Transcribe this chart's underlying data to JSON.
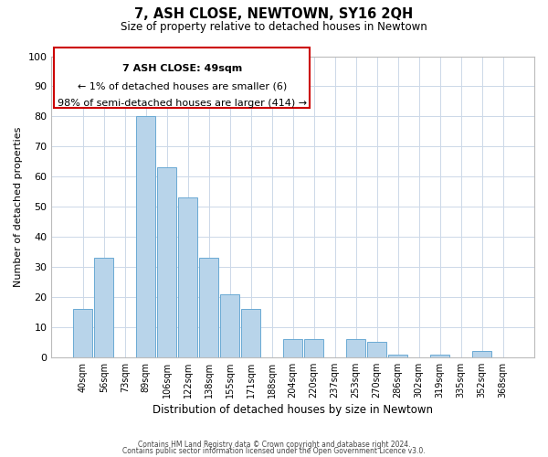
{
  "title": "7, ASH CLOSE, NEWTOWN, SY16 2QH",
  "subtitle": "Size of property relative to detached houses in Newtown",
  "xlabel": "Distribution of detached houses by size in Newtown",
  "ylabel": "Number of detached properties",
  "bar_labels": [
    "40sqm",
    "56sqm",
    "73sqm",
    "89sqm",
    "106sqm",
    "122sqm",
    "138sqm",
    "155sqm",
    "171sqm",
    "188sqm",
    "204sqm",
    "220sqm",
    "237sqm",
    "253sqm",
    "270sqm",
    "286sqm",
    "302sqm",
    "319sqm",
    "335sqm",
    "352sqm",
    "368sqm"
  ],
  "bar_values": [
    16,
    33,
    0,
    80,
    63,
    53,
    33,
    21,
    16,
    0,
    6,
    6,
    0,
    6,
    5,
    1,
    0,
    1,
    0,
    2,
    0
  ],
  "bar_color": "#b8d4ea",
  "bar_edge_color": "#6aaad4",
  "ylim": [
    0,
    100
  ],
  "yticks": [
    0,
    10,
    20,
    30,
    40,
    50,
    60,
    70,
    80,
    90,
    100
  ],
  "annotation_title": "7 ASH CLOSE: 49sqm",
  "annotation_line1": "← 1% of detached houses are smaller (6)",
  "annotation_line2": "98% of semi-detached houses are larger (414) →",
  "annotation_box_color": "#ffffff",
  "annotation_box_edge": "#cc0000",
  "footnote1": "Contains HM Land Registry data © Crown copyright and database right 2024.",
  "footnote2": "Contains public sector information licensed under the Open Government Licence v3.0.",
  "background_color": "#ffffff",
  "grid_color": "#ccd8e8"
}
